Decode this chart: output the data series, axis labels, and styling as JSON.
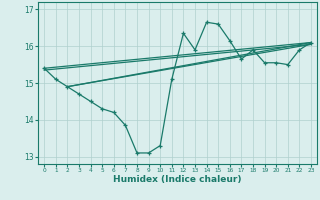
{
  "xlabel": "Humidex (Indice chaleur)",
  "bg_color": "#daeeed",
  "grid_color": "#b0d0ce",
  "line_color": "#1a7a6a",
  "ylim": [
    12.8,
    17.2
  ],
  "xlim": [
    -0.5,
    23.5
  ],
  "yticks": [
    13,
    14,
    15,
    16,
    17
  ],
  "xticks": [
    0,
    1,
    2,
    3,
    4,
    5,
    6,
    7,
    8,
    9,
    10,
    11,
    12,
    13,
    14,
    15,
    16,
    17,
    18,
    19,
    20,
    21,
    22,
    23
  ],
  "line1_x": [
    0,
    1,
    2,
    3,
    4,
    5,
    6,
    7,
    8,
    9,
    10,
    11,
    12,
    13,
    14,
    15,
    16,
    17,
    18,
    19,
    20,
    21,
    22,
    23
  ],
  "line1_y": [
    15.4,
    15.1,
    14.9,
    14.7,
    14.5,
    14.3,
    14.2,
    13.85,
    13.1,
    13.1,
    13.3,
    15.1,
    16.35,
    15.9,
    16.65,
    16.6,
    16.15,
    15.65,
    15.9,
    15.55,
    15.55,
    15.5,
    15.9,
    16.1
  ],
  "line2_x": [
    0,
    23
  ],
  "line2_y": [
    15.4,
    16.1
  ],
  "line3_x": [
    2,
    23
  ],
  "line3_y": [
    14.9,
    16.1
  ],
  "line4_x": [
    2,
    23
  ],
  "line4_y": [
    14.9,
    16.05
  ],
  "line5_x": [
    0,
    23
  ],
  "line5_y": [
    15.35,
    16.05
  ]
}
